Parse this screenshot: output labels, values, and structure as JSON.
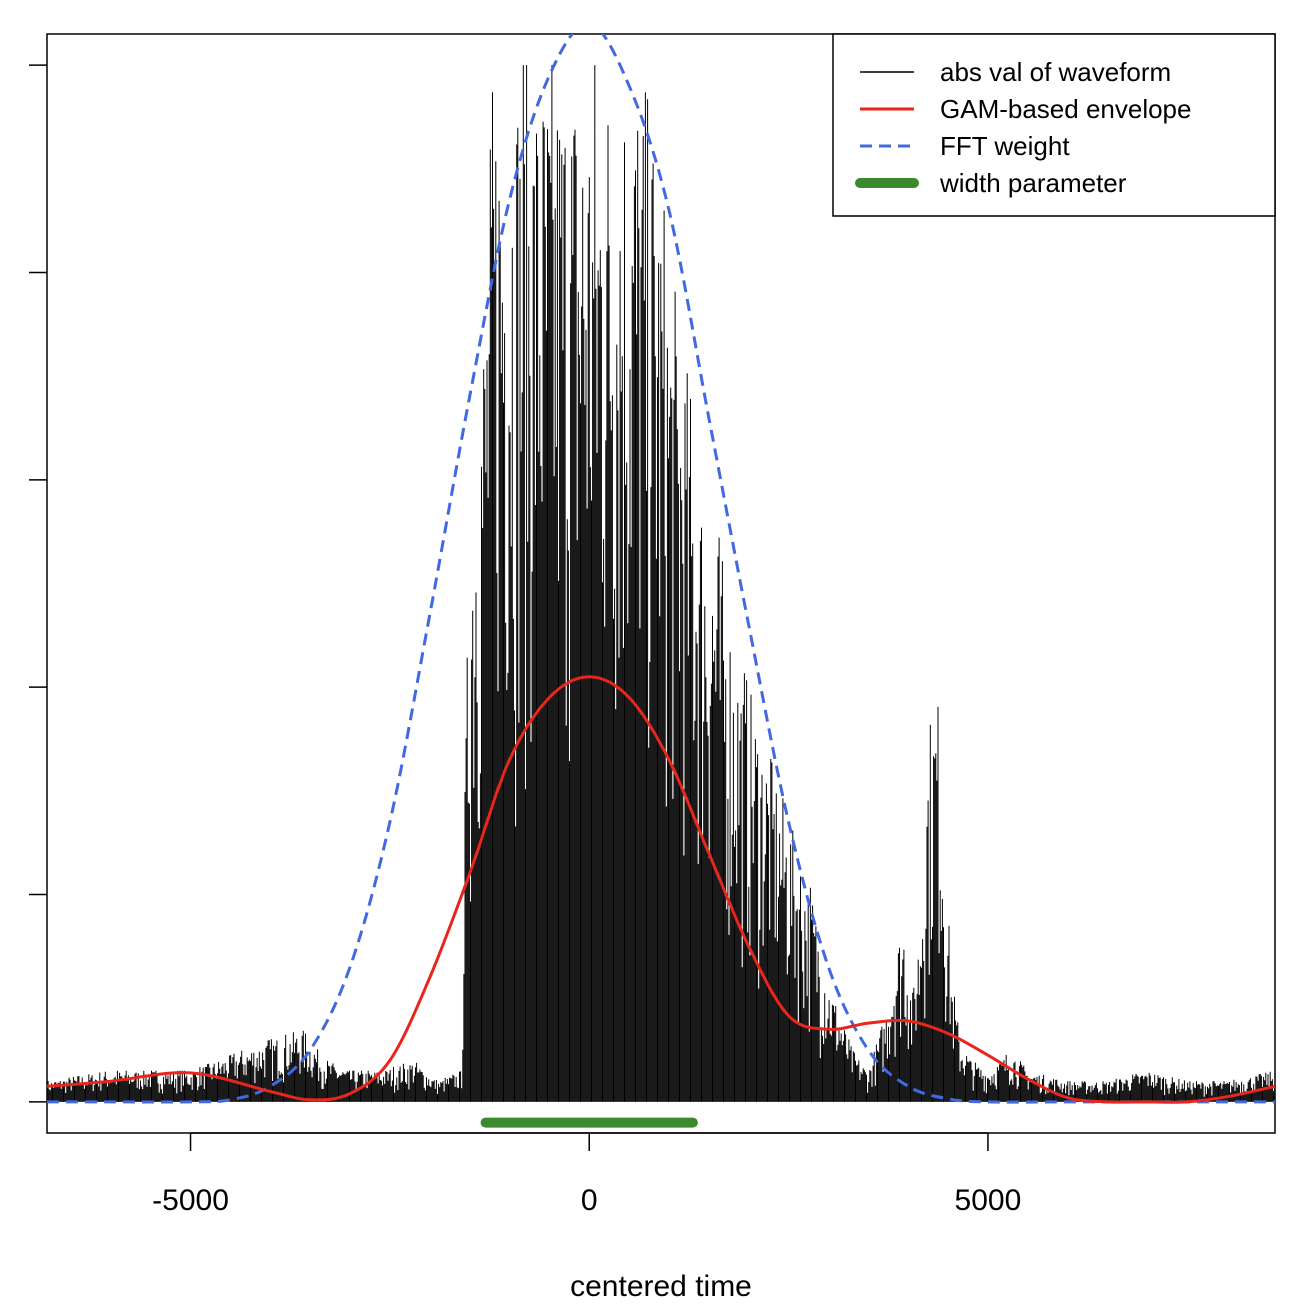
{
  "chart_data": {
    "type": "line",
    "xlabel": "centered time",
    "ylabel": "",
    "title": "",
    "xlim": [
      -6800,
      8600
    ],
    "ylim": [
      -0.03,
      1.03
    ],
    "x_ticks": [
      -5000,
      0,
      5000
    ],
    "x_tick_labels": [
      "-5000",
      "0",
      "5000"
    ],
    "y_ticks": [
      0,
      0.2,
      0.4,
      0.6,
      0.8,
      1.0
    ],
    "y_tick_labels_shown": false,
    "grid": false,
    "legend_position": "top-right",
    "colors": {
      "waveform": "#000000",
      "envelope": "#e8261c",
      "fft_weight": "#4169e1",
      "width_parameter": "#3b8a2e"
    },
    "series": [
      {
        "name": "abs val of waveform",
        "style": "solid-thin",
        "x": [
          -6800,
          -6000,
          -5000,
          -4000,
          -3600,
          -3300,
          -3000,
          -2600,
          -2200,
          -1900,
          -1600,
          -1550,
          -1500,
          -1400,
          -1300,
          -1200,
          -1000,
          -800,
          -600,
          -400,
          -200,
          0,
          200,
          400,
          600,
          800,
          1000,
          1200,
          1400,
          1600,
          1800,
          2000,
          2200,
          2400,
          2600,
          2800,
          3000,
          3300,
          3500,
          3700,
          3850,
          3950,
          4050,
          4150,
          4250,
          4350,
          4400,
          4450,
          4550,
          4650,
          4800,
          5000,
          5300,
          5500,
          6000,
          6500,
          7000,
          7500,
          8000,
          8600
        ],
        "y": [
          0.02,
          0.03,
          0.03,
          0.06,
          0.07,
          0.04,
          0.03,
          0.03,
          0.04,
          0.02,
          0.03,
          0.35,
          0.55,
          0.7,
          0.8,
          1.0,
          1.0,
          1.0,
          1.0,
          1.0,
          1.0,
          1.0,
          1.0,
          1.0,
          1.0,
          0.95,
          0.82,
          0.72,
          0.6,
          0.56,
          0.45,
          0.4,
          0.35,
          0.3,
          0.25,
          0.2,
          0.12,
          0.05,
          0.03,
          0.08,
          0.15,
          0.18,
          0.1,
          0.18,
          0.35,
          0.4,
          0.36,
          0.25,
          0.12,
          0.06,
          0.04,
          0.03,
          0.05,
          0.03,
          0.02,
          0.02,
          0.03,
          0.02,
          0.02,
          0.03
        ]
      },
      {
        "name": "GAM-based envelope",
        "style": "solid",
        "x": [
          -6800,
          -6000,
          -5000,
          -4000,
          -3500,
          -3000,
          -2500,
          -2000,
          -1500,
          -1000,
          -500,
          0,
          500,
          1000,
          1500,
          2000,
          2500,
          3000,
          3500,
          4000,
          4500,
          5000,
          5500,
          6000,
          6500,
          7000,
          7500,
          8000,
          8600
        ],
        "y": [
          0.015,
          0.02,
          0.028,
          0.01,
          0.002,
          0.008,
          0.04,
          0.12,
          0.22,
          0.33,
          0.39,
          0.41,
          0.39,
          0.33,
          0.24,
          0.15,
          0.083,
          0.07,
          0.076,
          0.078,
          0.066,
          0.045,
          0.022,
          0.004,
          0.0,
          0.0,
          0.0,
          0.005,
          0.015
        ]
      },
      {
        "name": "FFT weight",
        "style": "dashed",
        "x": [
          -6800,
          -6000,
          -5000,
          -4500,
          -4000,
          -3500,
          -3000,
          -2500,
          -2000,
          -1500,
          -1000,
          -500,
          0,
          500,
          1000,
          1500,
          2000,
          2500,
          3000,
          3500,
          4000,
          4500,
          5000,
          6000,
          7000,
          8000,
          8600
        ],
        "y": [
          0.0,
          0.0,
          0.0,
          0.002,
          0.015,
          0.05,
          0.13,
          0.27,
          0.47,
          0.68,
          0.87,
          0.99,
          1.04,
          0.98,
          0.86,
          0.66,
          0.46,
          0.27,
          0.13,
          0.05,
          0.015,
          0.003,
          0.0,
          0.0,
          0.0,
          0.0,
          0.0
        ]
      },
      {
        "name": "width parameter",
        "style": "thick-segment",
        "x": [
          -1300,
          1300
        ],
        "y": [
          -0.02,
          -0.02
        ]
      }
    ]
  }
}
